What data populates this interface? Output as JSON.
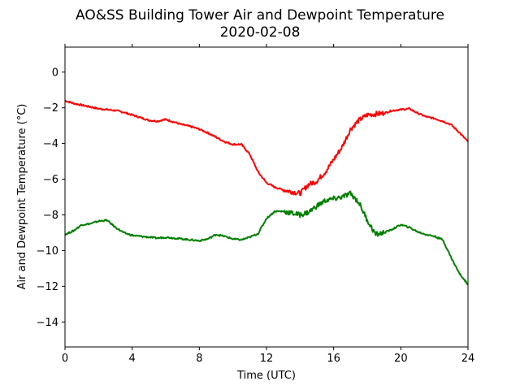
{
  "chart_data": {
    "type": "line",
    "title": "AO&SS Building Tower Air and Dewpoint Temperature",
    "subtitle": "2020-02-08",
    "xlabel": "Time (UTC)",
    "ylabel": "Air and Dewpoint Temperature (°C)",
    "xlim": [
      0,
      24
    ],
    "ylim": [
      -15.4,
      1.4
    ],
    "xticks": [
      0,
      4,
      8,
      12,
      16,
      20,
      24
    ],
    "yticks": [
      0,
      -2,
      -4,
      -6,
      -8,
      -10,
      -12,
      -14
    ],
    "grid": false,
    "legend": "none",
    "series": [
      {
        "color": "#ff0000",
        "x": [
          0,
          0.5,
          1,
          1.5,
          2,
          2.5,
          3,
          3.5,
          4,
          4.5,
          5,
          5.5,
          6,
          6.5,
          7,
          7.5,
          8,
          8.5,
          9,
          9.5,
          10,
          10.5,
          11,
          11.5,
          12,
          12.5,
          13,
          13.5,
          14,
          14.5,
          15,
          15.5,
          16,
          16.5,
          17,
          17.5,
          18,
          18.5,
          19,
          19.5,
          20,
          20.5,
          21,
          21.5,
          22,
          22.5,
          23,
          23.5,
          24
        ],
        "values": [
          -1.6,
          -1.75,
          -1.85,
          -1.95,
          -2.05,
          -2.1,
          -2.15,
          -2.25,
          -2.4,
          -2.55,
          -2.7,
          -2.75,
          -2.65,
          -2.8,
          -2.95,
          -3.05,
          -3.2,
          -3.4,
          -3.65,
          -3.9,
          -4.05,
          -4.05,
          -4.6,
          -5.6,
          -6.2,
          -6.45,
          -6.6,
          -6.7,
          -6.8,
          -6.3,
          -6.1,
          -5.6,
          -4.9,
          -4.2,
          -3.2,
          -2.7,
          -2.4,
          -2.35,
          -2.3,
          -2.15,
          -2.1,
          -2.05,
          -2.3,
          -2.5,
          -2.6,
          -2.75,
          -2.95,
          -3.4,
          -3.9
        ]
      },
      {
        "color": "#008000",
        "x": [
          0,
          0.5,
          1,
          1.5,
          2,
          2.5,
          3,
          3.5,
          4,
          4.5,
          5,
          5.5,
          6,
          6.5,
          7,
          7.5,
          8,
          8.5,
          9,
          9.5,
          10,
          10.5,
          11,
          11.5,
          12,
          12.5,
          13,
          13.5,
          14,
          14.5,
          15,
          15.5,
          16,
          16.5,
          17,
          17.5,
          18,
          18.5,
          19,
          19.5,
          20,
          20.5,
          21,
          21.5,
          22,
          22.5,
          23,
          23.5,
          24
        ],
        "values": [
          -9.1,
          -8.9,
          -8.55,
          -8.5,
          -8.35,
          -8.3,
          -8.7,
          -9.0,
          -9.15,
          -9.2,
          -9.25,
          -9.3,
          -9.25,
          -9.3,
          -9.35,
          -9.4,
          -9.45,
          -9.35,
          -9.1,
          -9.2,
          -9.35,
          -9.4,
          -9.25,
          -9.05,
          -8.2,
          -7.8,
          -7.8,
          -7.9,
          -8.0,
          -7.85,
          -7.5,
          -7.2,
          -7.1,
          -7.0,
          -6.8,
          -7.3,
          -8.3,
          -9.1,
          -9.0,
          -8.8,
          -8.55,
          -8.7,
          -8.95,
          -9.1,
          -9.2,
          -9.4,
          -10.4,
          -11.3,
          -11.9
        ]
      }
    ]
  }
}
